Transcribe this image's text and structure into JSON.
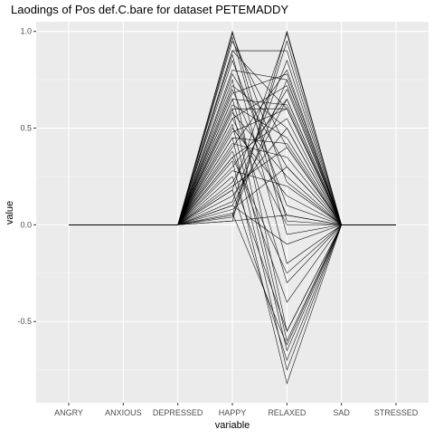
{
  "chart_data": {
    "type": "line",
    "title": "Laodings of Pos def.C.bare for dataset PETEMADDY",
    "xlabel": "variable",
    "ylabel": "value",
    "categories": [
      "ANGRY",
      "ANXIOUS",
      "DEPRESSED",
      "HAPPY",
      "RELAXED",
      "SAD",
      "STRESSED"
    ],
    "ylim": [
      -0.92,
      1.05
    ],
    "yticks": [
      1.0,
      0.5,
      0.0,
      -0.5
    ],
    "ytick_labels": [
      "1.0",
      "0.5",
      "0.0",
      "-0.5"
    ],
    "grid": true,
    "legend": "none",
    "line_color": "#000000",
    "panel_color": "#ebebeb",
    "series": [
      {
        "values": [
          0,
          0,
          0,
          1.0,
          0.02,
          0,
          0
        ]
      },
      {
        "values": [
          0,
          0,
          0,
          0.02,
          1.0,
          0,
          0
        ]
      },
      {
        "values": [
          0,
          0,
          0,
          0.99,
          0.22,
          0,
          0
        ]
      },
      {
        "values": [
          0,
          0,
          0,
          0.18,
          0.99,
          0,
          0
        ]
      },
      {
        "values": [
          0,
          0,
          0,
          0.97,
          -0.05,
          0,
          0
        ]
      },
      {
        "values": [
          0,
          0,
          0,
          0.05,
          0.95,
          0,
          0
        ]
      },
      {
        "values": [
          0,
          0,
          0,
          0.95,
          0.4,
          0,
          0
        ]
      },
      {
        "values": [
          0,
          0,
          0,
          0.9,
          0.6,
          0,
          0
        ]
      },
      {
        "values": [
          0,
          0,
          0,
          0.88,
          -0.2,
          0,
          0
        ]
      },
      {
        "values": [
          0,
          0,
          0,
          0.85,
          0.1,
          0,
          0
        ]
      },
      {
        "values": [
          0,
          0,
          0,
          0.8,
          0.75,
          0,
          0
        ]
      },
      {
        "values": [
          0,
          0,
          0,
          0.78,
          0.3,
          0,
          0
        ]
      },
      {
        "values": [
          0,
          0,
          0,
          0.75,
          -0.55,
          0,
          0
        ]
      },
      {
        "values": [
          0,
          0,
          0,
          0.72,
          0.5,
          0,
          0
        ]
      },
      {
        "values": [
          0,
          0,
          0,
          0.7,
          0.05,
          0,
          0
        ]
      },
      {
        "values": [
          0,
          0,
          0,
          0.68,
          0.78,
          0,
          0
        ]
      },
      {
        "values": [
          0,
          0,
          0,
          0.65,
          -0.3,
          0,
          0
        ]
      },
      {
        "values": [
          0,
          0,
          0,
          0.62,
          0.45,
          0,
          0
        ]
      },
      {
        "values": [
          0,
          0,
          0,
          0.6,
          -0.6,
          0,
          0
        ]
      },
      {
        "values": [
          0,
          0,
          0,
          0.58,
          0.25,
          0,
          0
        ]
      },
      {
        "values": [
          0,
          0,
          0,
          0.55,
          0.72,
          0,
          0
        ]
      },
      {
        "values": [
          0,
          0,
          0,
          0.52,
          -0.65,
          0,
          0
        ]
      },
      {
        "values": [
          0,
          0,
          0,
          0.5,
          0.15,
          0,
          0
        ]
      },
      {
        "values": [
          0,
          0,
          0,
          0.48,
          0.6,
          0,
          0
        ]
      },
      {
        "values": [
          0,
          0,
          0,
          0.45,
          -0.75,
          0,
          0
        ]
      },
      {
        "values": [
          0,
          0,
          0,
          0.42,
          0.35,
          0,
          0
        ]
      },
      {
        "values": [
          0,
          0,
          0,
          0.4,
          0.8,
          0,
          0
        ]
      },
      {
        "values": [
          0,
          0,
          0,
          0.38,
          -0.4,
          0,
          0
        ]
      },
      {
        "values": [
          0,
          0,
          0,
          0.35,
          0.55,
          0,
          0
        ]
      },
      {
        "values": [
          0,
          0,
          0,
          0.33,
          -0.82,
          0,
          0
        ]
      },
      {
        "values": [
          0,
          0,
          0,
          0.3,
          0.65,
          0,
          0
        ]
      },
      {
        "values": [
          0,
          0,
          0,
          0.28,
          0.2,
          0,
          0
        ]
      },
      {
        "values": [
          0,
          0,
          0,
          0.25,
          -0.55,
          0,
          0
        ]
      },
      {
        "values": [
          0,
          0,
          0,
          0.22,
          0.7,
          0,
          0
        ]
      },
      {
        "values": [
          0,
          0,
          0,
          0.2,
          0.4,
          0,
          0
        ]
      },
      {
        "values": [
          0,
          0,
          0,
          0.18,
          -0.7,
          0,
          0
        ]
      },
      {
        "values": [
          0,
          0,
          0,
          0.15,
          0.5,
          0,
          0
        ]
      },
      {
        "values": [
          0,
          0,
          0,
          0.12,
          0.85,
          0,
          0
        ]
      },
      {
        "values": [
          0,
          0,
          0,
          0.1,
          -0.1,
          0,
          0
        ]
      },
      {
        "values": [
          0,
          0,
          0,
          0.08,
          0.3,
          0,
          0
        ]
      },
      {
        "values": [
          0,
          0,
          0,
          0.06,
          -0.62,
          0,
          0
        ]
      },
      {
        "values": [
          0,
          0,
          0,
          0.04,
          0.75,
          0,
          0
        ]
      },
      {
        "values": [
          0,
          0,
          0,
          0.02,
          0.05,
          0,
          0
        ]
      },
      {
        "values": [
          0,
          0,
          0,
          0.6,
          0.6,
          0,
          0
        ]
      },
      {
        "values": [
          0,
          0,
          0,
          0.45,
          0.42,
          0,
          0
        ]
      },
      {
        "values": [
          0,
          0,
          0,
          0.9,
          0.9,
          0,
          0
        ]
      },
      {
        "values": [
          0,
          0,
          0,
          0.35,
          -0.25,
          0,
          0
        ]
      },
      {
        "values": [
          0,
          0,
          0,
          0.55,
          0.0,
          0,
          0
        ]
      },
      {
        "values": [
          0,
          0,
          0,
          0.1,
          0.65,
          0,
          0
        ]
      },
      {
        "values": [
          0,
          0,
          0,
          0.65,
          0.62,
          0,
          0
        ]
      }
    ]
  }
}
